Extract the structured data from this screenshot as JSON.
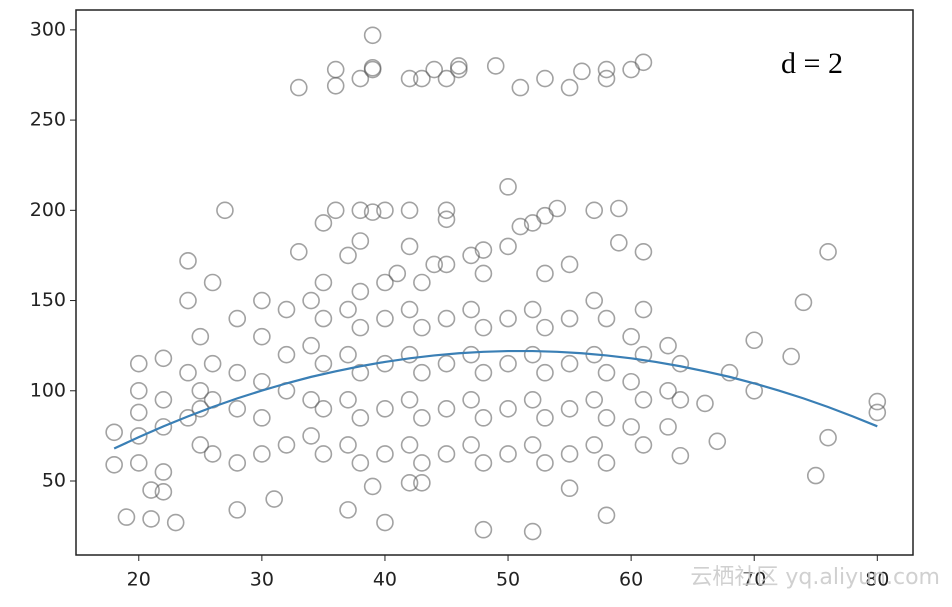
{
  "chart_data": {
    "type": "scatter",
    "annotation": "d = 2",
    "watermark": "云栖社区 yq.aliyun.com",
    "xlim": [
      14.9,
      82.9
    ],
    "ylim": [
      9,
      311
    ],
    "xticks": [
      20,
      30,
      40,
      50,
      60,
      70,
      80
    ],
    "yticks": [
      50,
      100,
      150,
      200,
      250,
      300
    ],
    "grid": false,
    "series": [
      {
        "type": "scatter",
        "color": "#555555",
        "x": [
          33,
          36,
          36,
          38,
          39,
          39,
          39,
          42,
          43,
          44,
          45,
          46,
          46,
          49,
          51,
          53,
          55,
          56,
          58,
          58,
          60,
          61,
          24,
          27,
          33,
          35,
          36,
          38,
          38,
          39,
          40,
          41,
          42,
          44,
          45,
          45,
          47,
          48,
          50,
          51,
          52,
          53,
          54,
          57,
          59,
          59,
          61,
          76,
          18,
          18,
          19,
          21,
          21,
          22,
          23,
          28,
          31,
          37,
          39,
          40,
          42,
          43,
          48,
          52,
          55,
          58,
          75,
          76,
          80,
          80,
          70,
          74,
          73,
          68,
          70,
          66,
          67,
          64,
          20,
          20,
          20,
          20,
          20,
          22,
          22,
          22,
          22,
          24,
          24,
          24,
          25,
          25,
          25,
          25,
          26,
          26,
          26,
          26,
          28,
          28,
          28,
          28,
          30,
          30,
          30,
          30,
          30,
          32,
          32,
          32,
          32,
          34,
          34,
          34,
          34,
          35,
          35,
          35,
          35,
          35,
          37,
          37,
          37,
          37,
          37,
          38,
          38,
          38,
          38,
          38,
          40,
          40,
          40,
          40,
          40,
          42,
          42,
          42,
          42,
          42,
          43,
          43,
          43,
          43,
          43,
          45,
          45,
          45,
          45,
          45,
          47,
          47,
          47,
          47,
          48,
          48,
          48,
          48,
          48,
          50,
          50,
          50,
          50,
          50,
          52,
          52,
          52,
          52,
          53,
          53,
          53,
          53,
          53,
          55,
          55,
          55,
          55,
          55,
          57,
          57,
          57,
          57,
          58,
          58,
          58,
          58,
          60,
          60,
          60,
          61,
          61,
          61,
          61,
          63,
          63,
          63,
          64,
          64
        ],
        "values": [
          268,
          278,
          269,
          273,
          278,
          279,
          297,
          273,
          273,
          278,
          273,
          280,
          278,
          280,
          268,
          273,
          268,
          277,
          273,
          278,
          278,
          282,
          172,
          200,
          177,
          193,
          200,
          200,
          183,
          199,
          200,
          165,
          200,
          170,
          200,
          195,
          175,
          178,
          213,
          191,
          193,
          197,
          201,
          200,
          201,
          182,
          177,
          177,
          77,
          59,
          30,
          29,
          45,
          44,
          27,
          34,
          40,
          34,
          47,
          27,
          49,
          49,
          23,
          22,
          46,
          31,
          53,
          74,
          88,
          94,
          128,
          149,
          119,
          110,
          100,
          93,
          72,
          64,
          60,
          75,
          88,
          100,
          115,
          55,
          80,
          95,
          118,
          85,
          110,
          150,
          70,
          90,
          100,
          130,
          65,
          95,
          115,
          160,
          60,
          90,
          110,
          140,
          65,
          85,
          105,
          130,
          150,
          70,
          100,
          120,
          145,
          75,
          95,
          125,
          150,
          65,
          90,
          115,
          140,
          160,
          70,
          95,
          120,
          145,
          175,
          60,
          85,
          110,
          135,
          155,
          65,
          90,
          115,
          140,
          160,
          70,
          95,
          120,
          145,
          180,
          60,
          85,
          110,
          135,
          160,
          65,
          90,
          115,
          140,
          170,
          70,
          95,
          120,
          145,
          60,
          85,
          110,
          135,
          165,
          65,
          90,
          115,
          140,
          180,
          70,
          95,
          120,
          145,
          60,
          85,
          110,
          135,
          165,
          65,
          90,
          115,
          140,
          170,
          70,
          95,
          120,
          150,
          60,
          85,
          110,
          140,
          80,
          105,
          130,
          70,
          95,
          120,
          145,
          80,
          100,
          125,
          95,
          115
        ]
      },
      {
        "type": "line",
        "color": "#3a7fb5",
        "x": [
          18,
          20,
          22,
          24,
          26,
          28,
          30,
          32,
          34,
          36,
          38,
          40,
          42,
          44,
          46,
          48,
          50,
          52,
          54,
          56,
          58,
          60,
          62,
          64,
          66,
          68,
          70,
          72,
          74,
          76,
          78,
          80
        ],
        "values": [
          68.0,
          74.3,
          80.3,
          85.8,
          91.0,
          95.8,
          100.1,
          104.1,
          107.7,
          110.8,
          113.6,
          116.0,
          118.0,
          119.6,
          120.8,
          121.6,
          122.0,
          122.0,
          121.6,
          120.8,
          119.6,
          118.0,
          116.0,
          113.6,
          110.8,
          107.7,
          104.1,
          100.1,
          95.8,
          91.0,
          85.8,
          80.3
        ]
      }
    ]
  }
}
